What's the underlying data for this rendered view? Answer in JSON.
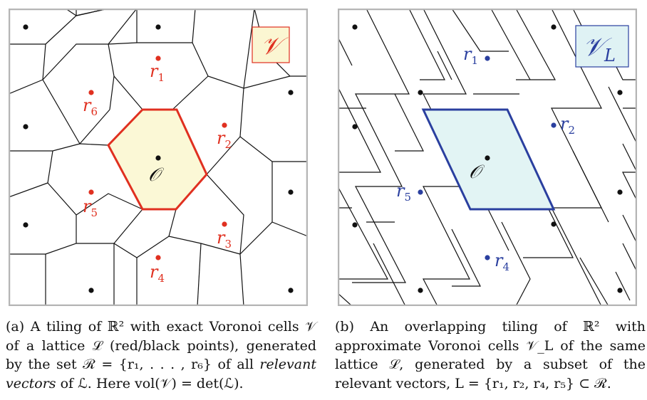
{
  "panel_a": {
    "badge": "𝒱",
    "origin_label": "𝒪",
    "points": [
      {
        "id": "r1",
        "base": "r",
        "sub": "1"
      },
      {
        "id": "r2",
        "base": "r",
        "sub": "2"
      },
      {
        "id": "r3",
        "base": "r",
        "sub": "3"
      },
      {
        "id": "r4",
        "base": "r",
        "sub": "4"
      },
      {
        "id": "r5",
        "base": "r",
        "sub": "5"
      },
      {
        "id": "r6",
        "base": "r",
        "sub": "6"
      }
    ]
  },
  "panel_b": {
    "badge_main": "𝒱",
    "badge_sub": "L",
    "origin_label": "𝒪",
    "points": [
      {
        "id": "r1",
        "base": "r",
        "sub": "1"
      },
      {
        "id": "r2",
        "base": "r",
        "sub": "2"
      },
      {
        "id": "r4",
        "base": "r",
        "sub": "4"
      },
      {
        "id": "r5",
        "base": "r",
        "sub": "5"
      }
    ]
  },
  "caption_a": {
    "part1": "(a) A tiling of ℝ² with exact Voronoi cells 𝒱 of a lattice ℒ (red/black points), generated by the set ℛ = {r₁, . . . , r₆} of all ",
    "italic": "relevant vectors",
    "part2": " of ℒ. Here vol(𝒱) = det(ℒ)."
  },
  "caption_b": {
    "text": "(b) An overlapping tiling of ℝ² with approximate Voronoi cells 𝒱_L of the same lattice ℒ, generated by a subset of the relevant vectors, L = {r₁, r₂, r₄, r₅} ⊂ ℛ."
  },
  "colors": {
    "red": "#e03020",
    "blue": "#2a3f9f",
    "cell_a_fill": "#fbf8d6",
    "cell_b_fill": "#e2f4f4",
    "badge_a_fill": "#fbf6d2",
    "badge_b_fill": "#dff2f4",
    "frame": "#b5b5b5"
  }
}
